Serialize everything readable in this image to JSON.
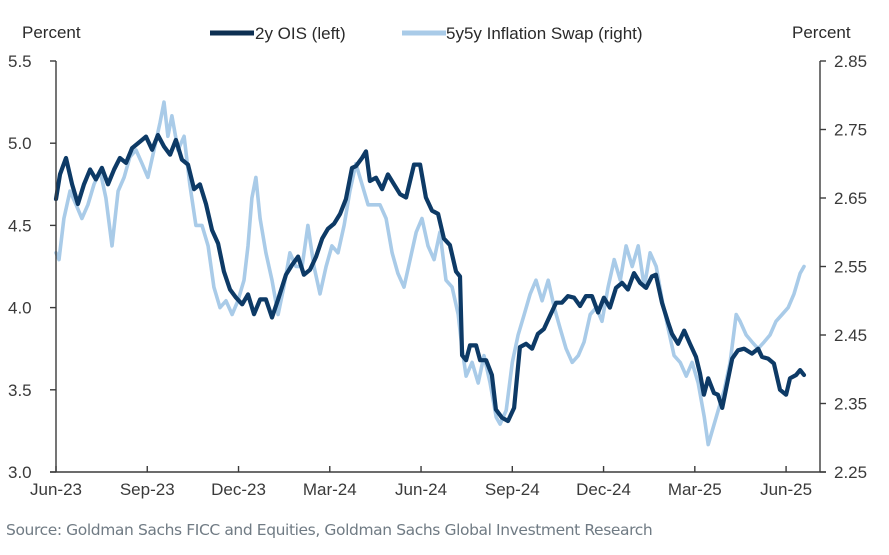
{
  "chart_data": {
    "type": "line",
    "title": "",
    "left_axis_label": "Percent",
    "right_axis_label": "Percent",
    "x_ticks": [
      "Jun-23",
      "Sep-23",
      "Dec-23",
      "Mar-24",
      "Jun-24",
      "Sep-24",
      "Dec-24",
      "Mar-25",
      "Jun-25"
    ],
    "x_unit": "months since Jun-23",
    "xlim": [
      0,
      24.9
    ],
    "y_left": {
      "ylim": [
        3.0,
        5.5
      ],
      "ticks": [
        "3.0",
        "3.5",
        "4.0",
        "4.5",
        "5.0",
        "5.5"
      ]
    },
    "y_right": {
      "ylim": [
        2.25,
        2.85
      ],
      "ticks": [
        "2.25",
        "2.35",
        "2.45",
        "2.55",
        "2.65",
        "2.75",
        "2.85"
      ]
    },
    "legend_position": "top",
    "grid": false,
    "series": [
      {
        "name": "2y OIS (left)",
        "axis": "left",
        "color": "#0d3a66",
        "points": [
          [
            0,
            4.66
          ],
          [
            0.13,
            4.81
          ],
          [
            0.33,
            4.91
          ],
          [
            0.53,
            4.75
          ],
          [
            0.72,
            4.63
          ],
          [
            0.92,
            4.75
          ],
          [
            1.12,
            4.84
          ],
          [
            1.31,
            4.78
          ],
          [
            1.51,
            4.85
          ],
          [
            1.71,
            4.75
          ],
          [
            1.91,
            4.84
          ],
          [
            2.1,
            4.91
          ],
          [
            2.3,
            4.88
          ],
          [
            2.5,
            4.97
          ],
          [
            2.76,
            5.01
          ],
          [
            2.96,
            5.04
          ],
          [
            3.16,
            4.96
          ],
          [
            3.35,
            5.05
          ],
          [
            3.55,
            4.98
          ],
          [
            3.75,
            4.93
          ],
          [
            3.94,
            5.02
          ],
          [
            4.14,
            4.9
          ],
          [
            4.34,
            4.87
          ],
          [
            4.54,
            4.72
          ],
          [
            4.73,
            4.75
          ],
          [
            4.93,
            4.63
          ],
          [
            5.13,
            4.47
          ],
          [
            5.33,
            4.39
          ],
          [
            5.52,
            4.22
          ],
          [
            5.72,
            4.11
          ],
          [
            5.92,
            4.06
          ],
          [
            6.12,
            4.02
          ],
          [
            6.31,
            4.08
          ],
          [
            6.51,
            3.96
          ],
          [
            6.71,
            4.05
          ],
          [
            6.9,
            4.05
          ],
          [
            7.1,
            3.94
          ],
          [
            7.3,
            4.05
          ],
          [
            7.56,
            4.2
          ],
          [
            7.76,
            4.26
          ],
          [
            7.96,
            4.31
          ],
          [
            8.15,
            4.2
          ],
          [
            8.35,
            4.23
          ],
          [
            8.55,
            4.31
          ],
          [
            8.75,
            4.42
          ],
          [
            8.94,
            4.48
          ],
          [
            9.14,
            4.51
          ],
          [
            9.34,
            4.57
          ],
          [
            9.53,
            4.66
          ],
          [
            9.73,
            4.85
          ],
          [
            9.86,
            4.86
          ],
          [
            10.06,
            4.91
          ],
          [
            10.19,
            4.95
          ],
          [
            10.32,
            4.77
          ],
          [
            10.52,
            4.79
          ],
          [
            10.72,
            4.72
          ],
          [
            10.91,
            4.81
          ],
          [
            11.11,
            4.75
          ],
          [
            11.31,
            4.69
          ],
          [
            11.51,
            4.67
          ],
          [
            11.77,
            4.87
          ],
          [
            11.97,
            4.87
          ],
          [
            12.16,
            4.67
          ],
          [
            12.36,
            4.59
          ],
          [
            12.56,
            4.57
          ],
          [
            12.75,
            4.42
          ],
          [
            12.95,
            4.38
          ],
          [
            13.15,
            4.22
          ],
          [
            13.28,
            4.19
          ],
          [
            13.35,
            3.71
          ],
          [
            13.48,
            3.68
          ],
          [
            13.61,
            3.77
          ],
          [
            13.81,
            3.77
          ],
          [
            13.94,
            3.68
          ],
          [
            14.14,
            3.68
          ],
          [
            14.33,
            3.59
          ],
          [
            14.46,
            3.38
          ],
          [
            14.66,
            3.33
          ],
          [
            14.86,
            3.31
          ],
          [
            15.06,
            3.39
          ],
          [
            15.25,
            3.76
          ],
          [
            15.45,
            3.78
          ],
          [
            15.65,
            3.75
          ],
          [
            15.84,
            3.84
          ],
          [
            16.04,
            3.87
          ],
          [
            16.24,
            3.95
          ],
          [
            16.44,
            4.03
          ],
          [
            16.63,
            4.03
          ],
          [
            16.83,
            4.07
          ],
          [
            17.03,
            4.06
          ],
          [
            17.23,
            4.01
          ],
          [
            17.42,
            4.07
          ],
          [
            17.62,
            4.07
          ],
          [
            17.82,
            3.97
          ],
          [
            18.01,
            4.06
          ],
          [
            18.21,
            4.0
          ],
          [
            18.41,
            4.12
          ],
          [
            18.61,
            4.15
          ],
          [
            18.8,
            4.11
          ],
          [
            19.0,
            4.21
          ],
          [
            19.2,
            4.15
          ],
          [
            19.4,
            4.12
          ],
          [
            19.59,
            4.19
          ],
          [
            19.72,
            4.2
          ],
          [
            19.92,
            4.03
          ],
          [
            20.12,
            3.91
          ],
          [
            20.25,
            3.84
          ],
          [
            20.45,
            3.78
          ],
          [
            20.65,
            3.86
          ],
          [
            20.84,
            3.78
          ],
          [
            21.04,
            3.7
          ],
          [
            21.17,
            3.6
          ],
          [
            21.3,
            3.47
          ],
          [
            21.44,
            3.57
          ],
          [
            21.63,
            3.48
          ],
          [
            21.76,
            3.47
          ],
          [
            21.9,
            3.39
          ],
          [
            22.03,
            3.51
          ],
          [
            22.23,
            3.69
          ],
          [
            22.42,
            3.74
          ],
          [
            22.62,
            3.75
          ],
          [
            22.88,
            3.72
          ],
          [
            23.08,
            3.75
          ],
          [
            23.21,
            3.7
          ],
          [
            23.41,
            3.69
          ],
          [
            23.6,
            3.66
          ],
          [
            23.8,
            3.5
          ],
          [
            24.0,
            3.47
          ],
          [
            24.13,
            3.57
          ],
          [
            24.33,
            3.59
          ],
          [
            24.46,
            3.62
          ],
          [
            24.59,
            3.59
          ]
        ]
      },
      {
        "name": "5y5y Inflation Swap (right)",
        "axis": "right",
        "color": "#a9cbe8",
        "points": [
          [
            0,
            2.57
          ],
          [
            0.1,
            2.56
          ],
          [
            0.26,
            2.62
          ],
          [
            0.46,
            2.66
          ],
          [
            0.66,
            2.64
          ],
          [
            0.85,
            2.62
          ],
          [
            1.05,
            2.64
          ],
          [
            1.25,
            2.67
          ],
          [
            1.45,
            2.69
          ],
          [
            1.64,
            2.65
          ],
          [
            1.84,
            2.58
          ],
          [
            2.04,
            2.66
          ],
          [
            2.24,
            2.68
          ],
          [
            2.43,
            2.71
          ],
          [
            2.63,
            2.72
          ],
          [
            2.83,
            2.7
          ],
          [
            3.02,
            2.68
          ],
          [
            3.22,
            2.72
          ],
          [
            3.42,
            2.76
          ],
          [
            3.55,
            2.79
          ],
          [
            3.68,
            2.74
          ],
          [
            3.81,
            2.77
          ],
          [
            4.01,
            2.72
          ],
          [
            4.21,
            2.74
          ],
          [
            4.4,
            2.67
          ],
          [
            4.6,
            2.61
          ],
          [
            4.8,
            2.61
          ],
          [
            5.0,
            2.58
          ],
          [
            5.19,
            2.52
          ],
          [
            5.39,
            2.49
          ],
          [
            5.59,
            2.5
          ],
          [
            5.79,
            2.48
          ],
          [
            5.98,
            2.5
          ],
          [
            6.18,
            2.53
          ],
          [
            6.31,
            2.58
          ],
          [
            6.44,
            2.65
          ],
          [
            6.57,
            2.68
          ],
          [
            6.71,
            2.62
          ],
          [
            6.9,
            2.57
          ],
          [
            7.1,
            2.53
          ],
          [
            7.3,
            2.48
          ],
          [
            7.49,
            2.52
          ],
          [
            7.69,
            2.57
          ],
          [
            7.89,
            2.55
          ],
          [
            8.09,
            2.55
          ],
          [
            8.28,
            2.61
          ],
          [
            8.48,
            2.55
          ],
          [
            8.68,
            2.51
          ],
          [
            8.88,
            2.55
          ],
          [
            9.07,
            2.58
          ],
          [
            9.27,
            2.57
          ],
          [
            9.47,
            2.61
          ],
          [
            9.66,
            2.66
          ],
          [
            9.86,
            2.7
          ],
          [
            10.06,
            2.67
          ],
          [
            10.26,
            2.64
          ],
          [
            10.45,
            2.64
          ],
          [
            10.65,
            2.64
          ],
          [
            10.85,
            2.62
          ],
          [
            11.05,
            2.57
          ],
          [
            11.24,
            2.54
          ],
          [
            11.44,
            2.52
          ],
          [
            11.64,
            2.56
          ],
          [
            11.84,
            2.6
          ],
          [
            12.03,
            2.62
          ],
          [
            12.23,
            2.58
          ],
          [
            12.43,
            2.56
          ],
          [
            12.62,
            2.6
          ],
          [
            12.82,
            2.53
          ],
          [
            13.02,
            2.52
          ],
          [
            13.22,
            2.48
          ],
          [
            13.35,
            2.43
          ],
          [
            13.48,
            2.39
          ],
          [
            13.68,
            2.41
          ],
          [
            13.88,
            2.38
          ],
          [
            14.07,
            2.42
          ],
          [
            14.27,
            2.38
          ],
          [
            14.47,
            2.33
          ],
          [
            14.6,
            2.32
          ],
          [
            14.8,
            2.34
          ],
          [
            15.0,
            2.41
          ],
          [
            15.19,
            2.45
          ],
          [
            15.39,
            2.48
          ],
          [
            15.59,
            2.51
          ],
          [
            15.78,
            2.53
          ],
          [
            15.98,
            2.5
          ],
          [
            16.18,
            2.53
          ],
          [
            16.38,
            2.49
          ],
          [
            16.57,
            2.46
          ],
          [
            16.77,
            2.43
          ],
          [
            16.97,
            2.41
          ],
          [
            17.17,
            2.42
          ],
          [
            17.36,
            2.44
          ],
          [
            17.56,
            2.48
          ],
          [
            17.76,
            2.49
          ],
          [
            17.95,
            2.47
          ],
          [
            18.15,
            2.52
          ],
          [
            18.35,
            2.56
          ],
          [
            18.55,
            2.53
          ],
          [
            18.74,
            2.58
          ],
          [
            18.94,
            2.55
          ],
          [
            19.14,
            2.58
          ],
          [
            19.34,
            2.52
          ],
          [
            19.53,
            2.57
          ],
          [
            19.73,
            2.55
          ],
          [
            19.93,
            2.5
          ],
          [
            20.12,
            2.46
          ],
          [
            20.32,
            2.42
          ],
          [
            20.52,
            2.41
          ],
          [
            20.72,
            2.39
          ],
          [
            20.91,
            2.41
          ],
          [
            21.11,
            2.38
          ],
          [
            21.31,
            2.33
          ],
          [
            21.44,
            2.29
          ],
          [
            21.57,
            2.31
          ],
          [
            21.77,
            2.34
          ],
          [
            21.97,
            2.37
          ],
          [
            22.16,
            2.41
          ],
          [
            22.36,
            2.48
          ],
          [
            22.49,
            2.47
          ],
          [
            22.69,
            2.45
          ],
          [
            22.88,
            2.44
          ],
          [
            23.08,
            2.43
          ],
          [
            23.28,
            2.44
          ],
          [
            23.47,
            2.45
          ],
          [
            23.67,
            2.47
          ],
          [
            23.87,
            2.48
          ],
          [
            24.07,
            2.49
          ],
          [
            24.26,
            2.51
          ],
          [
            24.46,
            2.54
          ],
          [
            24.59,
            2.55
          ]
        ]
      }
    ]
  },
  "footer": {
    "source": "Source: Goldman Sachs FICC and Equities, Goldman Sachs Global Investment Research"
  }
}
